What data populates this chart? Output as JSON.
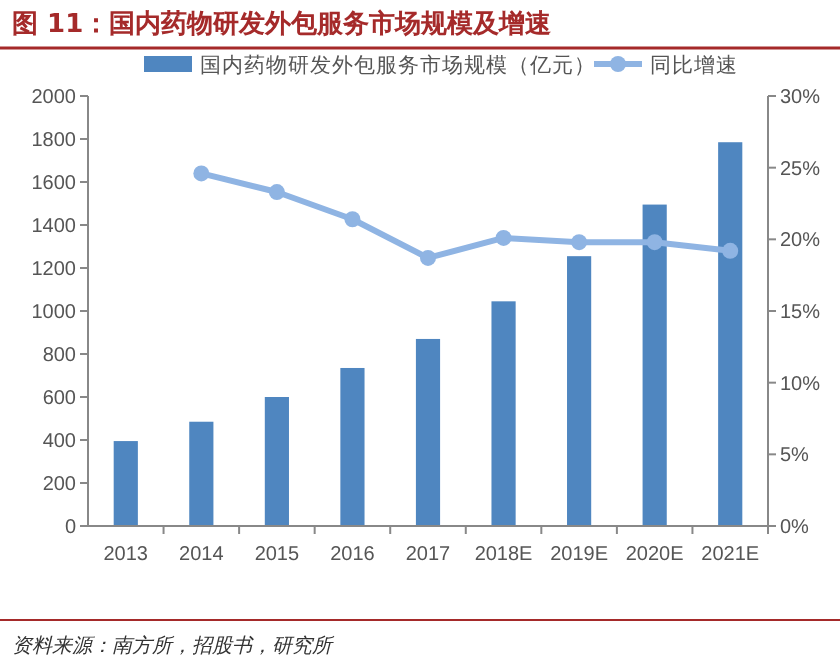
{
  "chart_data": {
    "type": "bar",
    "title": "图 11：国内药物研发外包服务市场规模及增速",
    "categories": [
      "2013",
      "2014",
      "2015",
      "2016",
      "2017",
      "2018E",
      "2019E",
      "2020E",
      "2021E"
    ],
    "series": [
      {
        "name": "国内药物研发外包服务市场规模（亿元）",
        "color": "#4f86c0",
        "values": [
          395,
          485,
          600,
          735,
          870,
          1045,
          1255,
          1495,
          1785
        ]
      },
      {
        "name": "同比增速",
        "type": "line",
        "axis": "y2",
        "color": "#8fb4e3",
        "marker": "circle",
        "values": [
          null,
          24.6,
          23.3,
          21.4,
          18.7,
          20.1,
          19.8,
          19.8,
          19.2
        ]
      }
    ],
    "ylim": [
      0,
      2000
    ],
    "yticks": [
      0,
      200,
      400,
      600,
      800,
      1000,
      1200,
      1400,
      1600,
      1800,
      2000
    ],
    "y2lim": [
      0,
      30
    ],
    "y2ticks": [
      {
        "value": 0,
        "label": "0%"
      },
      {
        "value": 5,
        "label": "5%"
      },
      {
        "value": 10,
        "label": "10%"
      },
      {
        "value": 15,
        "label": "15%"
      },
      {
        "value": 20,
        "label": "20%"
      },
      {
        "value": 25,
        "label": "25%"
      },
      {
        "value": 30,
        "label": "30%"
      }
    ],
    "legend": "top",
    "grid": false,
    "annotations": [
      "资料来源：南方所，招股书，研究所"
    ]
  }
}
